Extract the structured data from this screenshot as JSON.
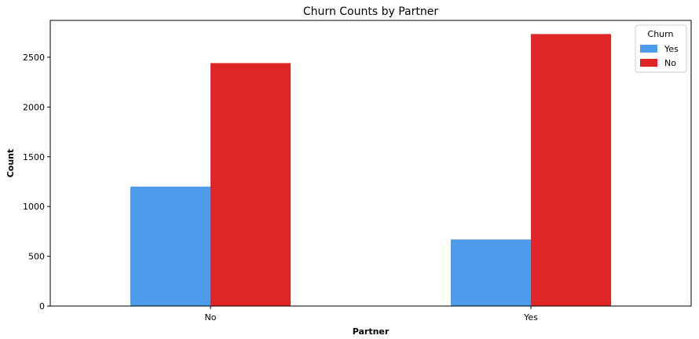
{
  "chart_data": {
    "type": "bar",
    "title": "Churn Counts by Partner",
    "xlabel": "Partner",
    "ylabel": "Count",
    "categories": [
      "No",
      "Yes"
    ],
    "series": [
      {
        "name": "Yes",
        "values": [
          1200,
          669
        ],
        "color": "#4f9beb"
      },
      {
        "name": "No",
        "values": [
          2441,
          2733
        ],
        "color": "#df2525"
      }
    ],
    "ylim": [
      0,
      2870
    ],
    "yticks": [
      0,
      500,
      1000,
      1500,
      2000,
      2500
    ],
    "legend": {
      "title": "Churn",
      "position": "top-right"
    },
    "grid": false
  }
}
